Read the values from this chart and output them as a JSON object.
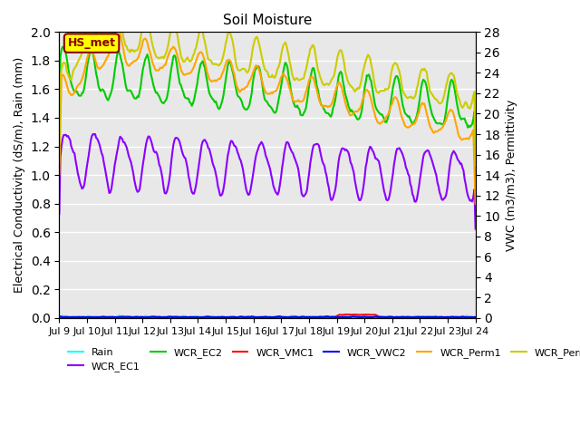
{
  "title": "Soil Moisture",
  "ylabel_left": "Electrical Conductivity (dS/m), Rain (mm)",
  "ylabel_right": "VWC (m3/m3), Permittivity",
  "ylim_left": [
    0.0,
    2.0
  ],
  "ylim_right": [
    0,
    28
  ],
  "xtick_labels": [
    "Jul 9",
    "Jul 10",
    "Jul 11",
    "Jul 12",
    "Jul 13",
    "Jul 14",
    "Jul 15",
    "Jul 16",
    "Jul 17",
    "Jul 18",
    "Jul 19",
    "Jul 20",
    "Jul 21",
    "Jul 22",
    "Jul 23",
    "Jul 24"
  ],
  "annotation_text": "HS_met",
  "annotation_color": "#8B0000",
  "annotation_bg": "#FFFF00",
  "background_color": "#E8E8E8",
  "series": {
    "Rain": {
      "color": "#00FFFF",
      "lw": 1.5
    },
    "WCR_EC1": {
      "color": "#8B00FF",
      "lw": 1.5
    },
    "WCR_EC2": {
      "color": "#00CC00",
      "lw": 1.5
    },
    "WCR_VMC1": {
      "color": "#FF0000",
      "lw": 1.5
    },
    "WCR_VWC2": {
      "color": "#0000FF",
      "lw": 1.5
    },
    "WCR_Perm1": {
      "color": "#FFA500",
      "lw": 1.5
    },
    "WCR_Perm2": {
      "color": "#CCCC00",
      "lw": 1.5
    }
  }
}
